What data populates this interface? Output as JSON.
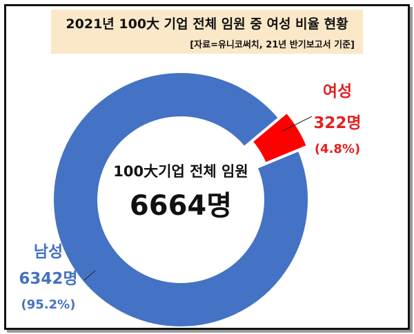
{
  "title": "2021년 100大 기업 전체 임원 중 여성 비율 현황",
  "source": "[자료=유니코써치, 21년 반기보고서 기준]",
  "center": {
    "label": "100大기업 전체 임원",
    "total": "6664명"
  },
  "chart_data": {
    "type": "pie",
    "title": "2021년 100大 기업 전체 임원 중 여성 비율 현황",
    "subtitle": "[자료=유니코써치, 21년 반기보고서 기준]",
    "total": 6664,
    "slices": [
      {
        "name": "여성",
        "value": 322,
        "value_label": "322명",
        "percent_label": "(4.8%)",
        "color": "#ff0000"
      },
      {
        "name": "남성",
        "value": 6342,
        "value_label": "6342명",
        "percent_label": "(95.2%)",
        "color": "#4472c4"
      }
    ],
    "style": "donut",
    "legend": "none"
  }
}
